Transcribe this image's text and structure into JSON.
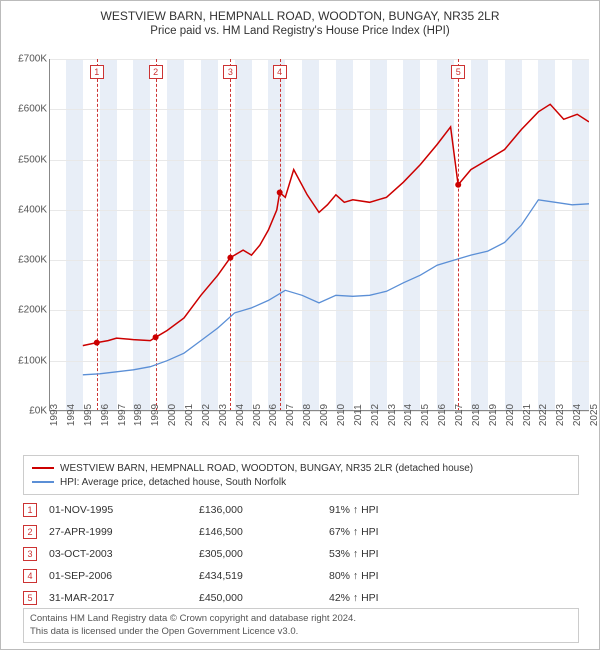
{
  "title_line1": "WESTVIEW BARN, HEMPNALL ROAD, WOODTON, BUNGAY, NR35 2LR",
  "title_line2": "Price paid vs. HM Land Registry's House Price Index (HPI)",
  "chart": {
    "type": "line",
    "plot_bg": "#ffffff",
    "grid_color": "#e8e8e8",
    "axis_color": "#888888",
    "band_color": "#e8eef7",
    "ylim": [
      0,
      700000
    ],
    "ytick_step": 100000,
    "ytick_labels": [
      "£0K",
      "£100K",
      "£200K",
      "£300K",
      "£400K",
      "£500K",
      "£600K",
      "£700K"
    ],
    "x_years": [
      1993,
      1994,
      1995,
      1996,
      1997,
      1998,
      1999,
      2000,
      2001,
      2002,
      2003,
      2004,
      2005,
      2006,
      2007,
      2008,
      2009,
      2010,
      2011,
      2012,
      2013,
      2014,
      2015,
      2016,
      2017,
      2018,
      2019,
      2020,
      2021,
      2022,
      2023,
      2024,
      2025
    ],
    "series": [
      {
        "name": "property",
        "label": "WESTVIEW BARN, HEMPNALL ROAD, WOODTON, BUNGAY, NR35 2LR (detached house)",
        "color": "#cc0000",
        "width": 1.5,
        "points": [
          [
            1995.0,
            130000
          ],
          [
            1995.83,
            136000
          ],
          [
            1996.5,
            140000
          ],
          [
            1997.0,
            145000
          ],
          [
            1998.0,
            142000
          ],
          [
            1999.0,
            140000
          ],
          [
            1999.32,
            146500
          ],
          [
            2000.0,
            160000
          ],
          [
            2001.0,
            185000
          ],
          [
            2002.0,
            230000
          ],
          [
            2003.0,
            270000
          ],
          [
            2003.75,
            305000
          ],
          [
            2004.5,
            320000
          ],
          [
            2005.0,
            310000
          ],
          [
            2005.5,
            330000
          ],
          [
            2006.0,
            360000
          ],
          [
            2006.5,
            400000
          ],
          [
            2006.67,
            434519
          ],
          [
            2007.0,
            425000
          ],
          [
            2007.5,
            480000
          ],
          [
            2008.3,
            430000
          ],
          [
            2009.0,
            395000
          ],
          [
            2009.5,
            410000
          ],
          [
            2010.0,
            430000
          ],
          [
            2010.5,
            415000
          ],
          [
            2011.0,
            420000
          ],
          [
            2012.0,
            415000
          ],
          [
            2013.0,
            425000
          ],
          [
            2014.0,
            455000
          ],
          [
            2015.0,
            490000
          ],
          [
            2016.0,
            530000
          ],
          [
            2016.8,
            565000
          ],
          [
            2017.24,
            450000
          ],
          [
            2017.25,
            450000
          ],
          [
            2018.0,
            480000
          ],
          [
            2019.0,
            500000
          ],
          [
            2020.0,
            520000
          ],
          [
            2021.0,
            560000
          ],
          [
            2022.0,
            595000
          ],
          [
            2022.7,
            610000
          ],
          [
            2023.5,
            580000
          ],
          [
            2024.3,
            590000
          ],
          [
            2025.0,
            575000
          ]
        ],
        "marker_points": [
          [
            1995.83,
            136000
          ],
          [
            1999.32,
            146500
          ],
          [
            2003.75,
            305000
          ],
          [
            2006.67,
            434519
          ],
          [
            2017.25,
            450000
          ]
        ]
      },
      {
        "name": "hpi",
        "label": "HPI: Average price, detached house, South Norfolk",
        "color": "#5b8fd6",
        "width": 1.3,
        "points": [
          [
            1995.0,
            72000
          ],
          [
            1996.0,
            74000
          ],
          [
            1997.0,
            78000
          ],
          [
            1998.0,
            82000
          ],
          [
            1999.0,
            88000
          ],
          [
            2000.0,
            100000
          ],
          [
            2001.0,
            115000
          ],
          [
            2002.0,
            140000
          ],
          [
            2003.0,
            165000
          ],
          [
            2004.0,
            195000
          ],
          [
            2005.0,
            205000
          ],
          [
            2006.0,
            220000
          ],
          [
            2007.0,
            240000
          ],
          [
            2008.0,
            230000
          ],
          [
            2009.0,
            215000
          ],
          [
            2010.0,
            230000
          ],
          [
            2011.0,
            228000
          ],
          [
            2012.0,
            230000
          ],
          [
            2013.0,
            238000
          ],
          [
            2014.0,
            255000
          ],
          [
            2015.0,
            270000
          ],
          [
            2016.0,
            290000
          ],
          [
            2017.0,
            300000
          ],
          [
            2018.0,
            310000
          ],
          [
            2019.0,
            318000
          ],
          [
            2020.0,
            335000
          ],
          [
            2021.0,
            370000
          ],
          [
            2022.0,
            420000
          ],
          [
            2023.0,
            415000
          ],
          [
            2024.0,
            410000
          ],
          [
            2025.0,
            412000
          ]
        ]
      }
    ],
    "markers": [
      {
        "n": "1",
        "year": 1995.83
      },
      {
        "n": "2",
        "year": 1999.32
      },
      {
        "n": "3",
        "year": 2003.75
      },
      {
        "n": "4",
        "year": 2006.67
      },
      {
        "n": "5",
        "year": 2017.25
      }
    ]
  },
  "legend": {
    "rows": [
      {
        "color": "#cc0000",
        "label": "WESTVIEW BARN, HEMPNALL ROAD, WOODTON, BUNGAY, NR35 2LR (detached house)"
      },
      {
        "color": "#5b8fd6",
        "label": "HPI: Average price, detached house, South Norfolk"
      }
    ]
  },
  "sales_table": [
    {
      "n": "1",
      "date": "01-NOV-1995",
      "price": "£136,000",
      "vs_hpi": "91% ↑ HPI"
    },
    {
      "n": "2",
      "date": "27-APR-1999",
      "price": "£146,500",
      "vs_hpi": "67% ↑ HPI"
    },
    {
      "n": "3",
      "date": "03-OCT-2003",
      "price": "£305,000",
      "vs_hpi": "53% ↑ HPI"
    },
    {
      "n": "4",
      "date": "01-SEP-2006",
      "price": "£434,519",
      "vs_hpi": "80% ↑ HPI"
    },
    {
      "n": "5",
      "date": "31-MAR-2017",
      "price": "£450,000",
      "vs_hpi": "42% ↑ HPI"
    }
  ],
  "footer_line1": "Contains HM Land Registry data © Crown copyright and database right 2024.",
  "footer_line2": "This data is licensed under the Open Government Licence v3.0."
}
